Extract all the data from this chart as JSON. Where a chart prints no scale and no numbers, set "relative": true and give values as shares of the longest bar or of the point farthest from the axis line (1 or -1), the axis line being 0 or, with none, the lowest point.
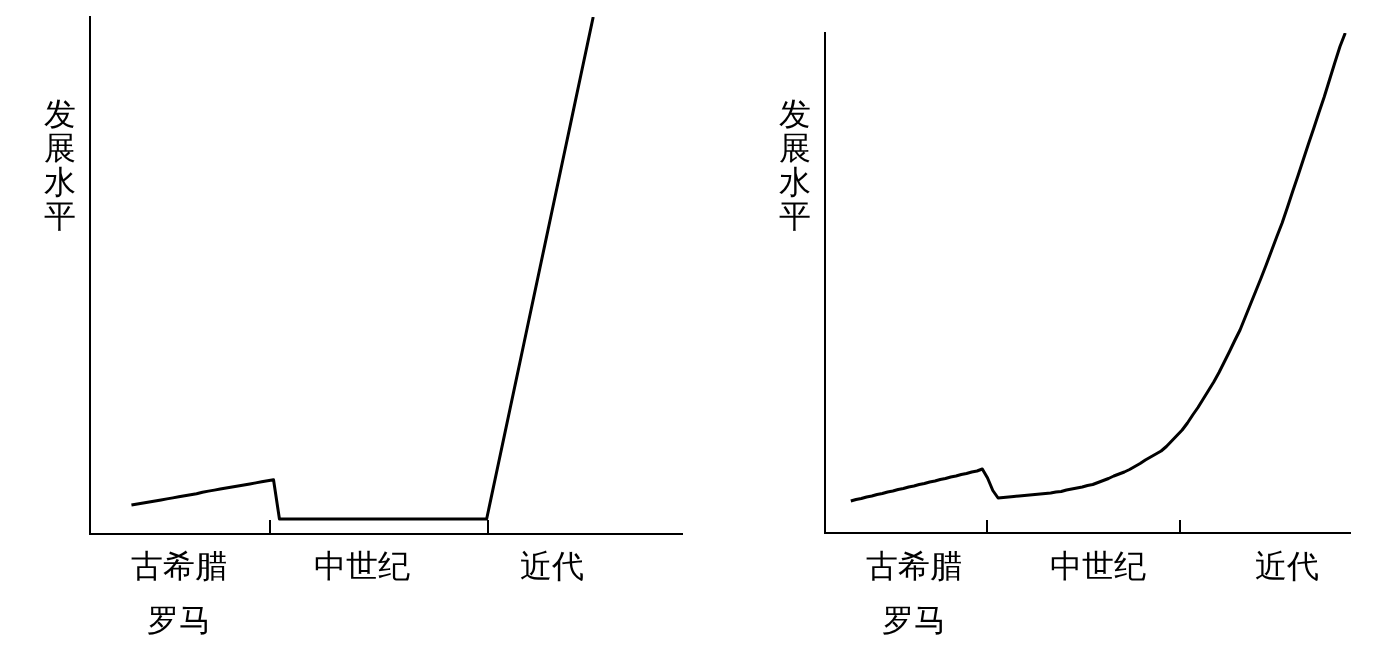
{
  "chart_data": [
    {
      "type": "line",
      "ylabel": "发展水平",
      "relative": true,
      "tick_labels": "x",
      "marker": "none",
      "line_style": "solid",
      "categories": [
        null,
        null,
        null,
        null,
        null,
        null,
        null,
        null,
        null,
        null,
        null,
        null,
        null,
        null,
        null,
        "古希腊罗马",
        null,
        null,
        null,
        null,
        null,
        null,
        null,
        null,
        null,
        null,
        null,
        null,
        null,
        null,
        null,
        null,
        null,
        null,
        null,
        null,
        null,
        null,
        null,
        null,
        null,
        null,
        null,
        null,
        null,
        null,
        "中世纪",
        null,
        null,
        null,
        null,
        null,
        null,
        null,
        null,
        null,
        null,
        null,
        null,
        null,
        null,
        null,
        null,
        null,
        null,
        null,
        null,
        null,
        null,
        null,
        null,
        null,
        null,
        null,
        null,
        null,
        null,
        null,
        "近代",
        null,
        null,
        null,
        null,
        null,
        null,
        null,
        null,
        null,
        null,
        null,
        null,
        null,
        null,
        null,
        null,
        null,
        null,
        null,
        null,
        null,
        null
      ],
      "series": [
        {
          "color": "#000000",
          "values": [
            null,
            null,
            null,
            null,
            null,
            null,
            null,
            0.055,
            0.057,
            0.059,
            0.061,
            0.063,
            0.065,
            0.067,
            0.069,
            0.071,
            0.073,
            0.075,
            0.077,
            0.08,
            0.082,
            0.084,
            0.086,
            0.088,
            0.09,
            0.092,
            0.094,
            0.096,
            0.098,
            0.1,
            0.102,
            0.104,
            0.028,
            0.028,
            0.028,
            0.028,
            0.028,
            0.028,
            0.028,
            0.028,
            0.028,
            0.028,
            0.028,
            0.028,
            0.028,
            0.028,
            0.028,
            0.028,
            0.028,
            0.028,
            0.028,
            0.028,
            0.028,
            0.028,
            0.028,
            0.028,
            0.028,
            0.028,
            0.028,
            0.028,
            0.028,
            0.028,
            0.028,
            0.028,
            0.028,
            0.028,
            0.028,
            0.028,
            0.082,
            0.136,
            0.19,
            0.244,
            0.298,
            0.352,
            0.406,
            0.46,
            0.514,
            0.568,
            0.622,
            0.676,
            0.73,
            0.784,
            0.838,
            0.892,
            0.946,
            1,
            null,
            null,
            null,
            null,
            null,
            null,
            null,
            null,
            null,
            null,
            null,
            null,
            null,
            null,
            null
          ]
        }
      ]
    },
    {
      "type": "line",
      "ylabel": "发展水平",
      "relative": true,
      "tick_labels": "x",
      "marker": "none",
      "line_style": "solid",
      "categories": [
        null,
        null,
        null,
        null,
        null,
        null,
        null,
        null,
        null,
        null,
        null,
        null,
        null,
        null,
        null,
        null,
        null,
        "古希腊罗马",
        null,
        null,
        null,
        null,
        null,
        null,
        null,
        null,
        null,
        null,
        null,
        null,
        null,
        null,
        null,
        null,
        null,
        null,
        null,
        null,
        null,
        null,
        null,
        null,
        null,
        null,
        null,
        null,
        null,
        null,
        null,
        null,
        null,
        null,
        "中世纪",
        null,
        null,
        null,
        null,
        null,
        null,
        null,
        null,
        null,
        null,
        null,
        null,
        null,
        null,
        null,
        null,
        null,
        null,
        null,
        null,
        null,
        null,
        null,
        null,
        null,
        null,
        null,
        null,
        null,
        null,
        null,
        null,
        null,
        null,
        null,
        "近代",
        null,
        null,
        null,
        null,
        null,
        null,
        null,
        null,
        null,
        null,
        null,
        null
      ],
      "series": [
        {
          "color": "#000000",
          "values": [
            null,
            null,
            null,
            null,
            null,
            0.064,
            0.067,
            0.069,
            0.072,
            0.074,
            0.077,
            0.079,
            0.082,
            0.084,
            0.087,
            0.089,
            0.092,
            0.094,
            0.097,
            0.099,
            0.102,
            0.104,
            0.107,
            0.109,
            0.112,
            0.114,
            0.117,
            0.119,
            0.122,
            0.124,
            0.128,
            0.11,
            0.085,
            0.07,
            0.071,
            0.072,
            0.073,
            0.074,
            0.075,
            0.076,
            0.077,
            0.078,
            0.079,
            0.08,
            0.082,
            0.083,
            0.086,
            0.088,
            0.09,
            0.092,
            0.095,
            0.097,
            0.101,
            0.105,
            0.109,
            0.114,
            0.118,
            0.122,
            0.127,
            0.133,
            0.139,
            0.146,
            0.152,
            0.158,
            0.164,
            0.173,
            0.184,
            0.195,
            0.206,
            0.22,
            0.236,
            0.251,
            0.268,
            0.285,
            0.302,
            0.321,
            0.342,
            0.363,
            0.385,
            0.406,
            0.432,
            0.458,
            0.484,
            0.51,
            0.537,
            0.565,
            0.593,
            0.62,
            0.651,
            0.683,
            0.714,
            0.746,
            0.778,
            0.809,
            0.841,
            0.872,
            0.906,
            0.94,
            0.973,
            1,
            null
          ]
        }
      ]
    }
  ]
}
